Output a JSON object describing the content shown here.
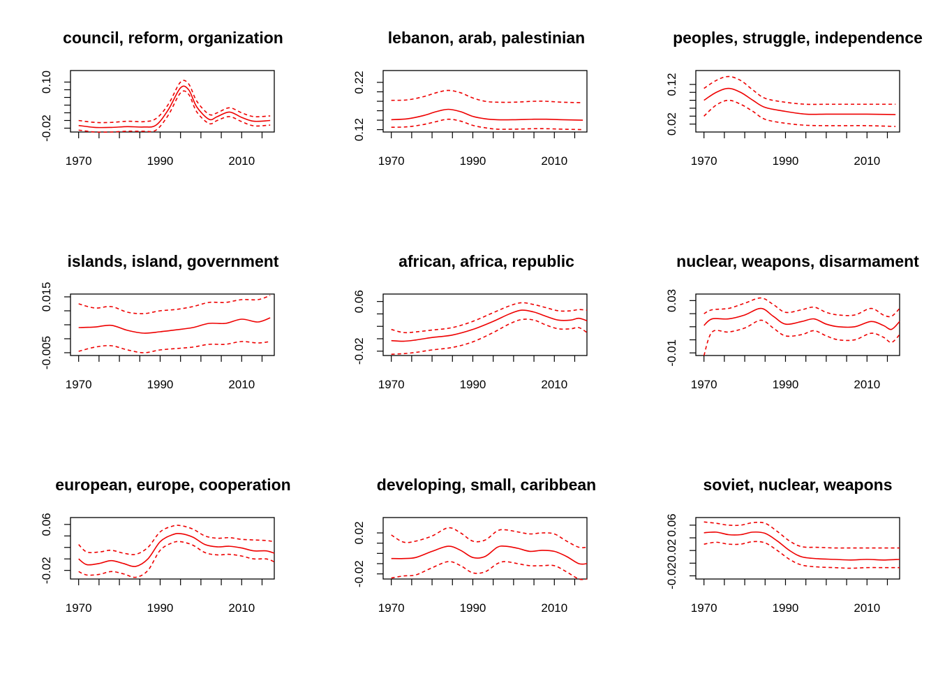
{
  "style": {
    "line_color": "#ee0000",
    "axis_color": "#000000"
  },
  "chart_data": [
    {
      "type": "line",
      "title": "council, reform, organization",
      "xlabel": "",
      "ylabel": "",
      "xlim": [
        1968,
        2018
      ],
      "ylim": [
        -0.03,
        0.13
      ],
      "xticks": [
        1970,
        1990,
        2010
      ],
      "xtick_labels": [
        "1970",
        "1990",
        "2010"
      ],
      "yticks": [
        -0.02,
        0.0,
        0.02,
        0.04,
        0.06,
        0.08,
        0.1
      ],
      "ytick_labels": [
        "-0.02",
        "0.10"
      ],
      "x": [
        1970,
        1974,
        1978,
        1982,
        1986,
        1989,
        1992,
        1995,
        1997,
        1999,
        2002,
        2004,
        2007,
        2010,
        2013,
        2017
      ],
      "series": [
        {
          "values": [
            -0.013,
            -0.018,
            -0.018,
            -0.016,
            -0.017,
            -0.012,
            0.028,
            0.085,
            0.08,
            0.035,
            0.003,
            0.01,
            0.022,
            0.008,
            -0.002,
            0.0
          ]
        },
        {
          "values": [
            0.0,
            -0.005,
            -0.005,
            -0.002,
            -0.003,
            0.005,
            0.042,
            0.1,
            0.095,
            0.05,
            0.016,
            0.02,
            0.033,
            0.02,
            0.01,
            0.012
          ]
        },
        {
          "values": [
            -0.025,
            -0.03,
            -0.03,
            -0.028,
            -0.028,
            -0.025,
            0.014,
            0.072,
            0.068,
            0.022,
            -0.008,
            0.0,
            0.01,
            -0.003,
            -0.014,
            -0.012
          ]
        }
      ]
    },
    {
      "type": "line",
      "title": "lebanon, arab, palestinian",
      "xlabel": "",
      "ylabel": "",
      "xlim": [
        1968,
        2018
      ],
      "ylim": [
        0.115,
        0.245
      ],
      "xticks": [
        1970,
        1990,
        2010
      ],
      "xtick_labels": [
        "1970",
        "1990",
        "2010"
      ],
      "yticks": [
        0.12,
        0.14,
        0.16,
        0.18,
        0.2,
        0.22
      ],
      "ytick_labels": [
        "0.12",
        "0.22"
      ],
      "x": [
        1970,
        1974,
        1978,
        1981,
        1984,
        1987,
        1990,
        1993,
        1996,
        2000,
        2005,
        2008,
        2012,
        2017
      ],
      "series": [
        {
          "values": [
            0.141,
            0.143,
            0.15,
            0.158,
            0.163,
            0.158,
            0.148,
            0.143,
            0.141,
            0.141,
            0.142,
            0.142,
            0.141,
            0.14
          ]
        },
        {
          "values": [
            0.182,
            0.183,
            0.19,
            0.198,
            0.203,
            0.198,
            0.187,
            0.18,
            0.178,
            0.178,
            0.18,
            0.18,
            0.178,
            0.177
          ]
        },
        {
          "values": [
            0.125,
            0.126,
            0.131,
            0.137,
            0.142,
            0.138,
            0.129,
            0.124,
            0.121,
            0.121,
            0.122,
            0.122,
            0.121,
            0.12
          ]
        }
      ]
    },
    {
      "type": "line",
      "title": "peoples, struggle, independence",
      "xlabel": "",
      "ylabel": "",
      "xlim": [
        1968,
        2018
      ],
      "ylim": [
        0.0,
        0.155
      ],
      "xticks": [
        1970,
        1990,
        2010
      ],
      "xtick_labels": [
        "1970",
        "1990",
        "2010"
      ],
      "yticks": [
        0.02,
        0.04,
        0.06,
        0.08,
        0.1,
        0.12
      ],
      "ytick_labels": [
        "0.02",
        "0.12"
      ],
      "x": [
        1970,
        1973,
        1976,
        1979,
        1982,
        1985,
        1990,
        1995,
        2000,
        2005,
        2010,
        2017
      ],
      "series": [
        {
          "values": [
            0.08,
            0.1,
            0.11,
            0.1,
            0.08,
            0.062,
            0.052,
            0.045,
            0.045,
            0.045,
            0.045,
            0.044
          ]
        },
        {
          "values": [
            0.11,
            0.13,
            0.14,
            0.13,
            0.106,
            0.085,
            0.075,
            0.07,
            0.07,
            0.07,
            0.07,
            0.07
          ]
        },
        {
          "values": [
            0.04,
            0.068,
            0.08,
            0.07,
            0.052,
            0.032,
            0.022,
            0.017,
            0.016,
            0.016,
            0.016,
            0.014
          ]
        }
      ]
    },
    {
      "type": "line",
      "title": "islands, island, government",
      "xlabel": "",
      "ylabel": "",
      "xlim": [
        1968,
        2018
      ],
      "ylim": [
        -0.006,
        0.016
      ],
      "xticks": [
        1970,
        1990,
        2010
      ],
      "xtick_labels": [
        "1970",
        "1990",
        "2010"
      ],
      "yticks": [
        -0.005,
        0.0,
        0.005,
        0.01,
        0.015
      ],
      "ytick_labels": [
        "-0.005",
        "0.015"
      ],
      "x": [
        1970,
        1974,
        1978,
        1982,
        1986,
        1990,
        1994,
        1998,
        2002,
        2006,
        2010,
        2014,
        2017
      ],
      "series": [
        {
          "values": [
            0.004,
            0.0042,
            0.0048,
            0.003,
            0.002,
            0.0025,
            0.0032,
            0.004,
            0.0055,
            0.0055,
            0.007,
            0.006,
            0.0075
          ]
        },
        {
          "values": [
            0.0125,
            0.011,
            0.0115,
            0.0095,
            0.009,
            0.01,
            0.0105,
            0.0115,
            0.013,
            0.013,
            0.014,
            0.014,
            0.0155
          ]
        },
        {
          "values": [
            -0.0045,
            -0.003,
            -0.0025,
            -0.004,
            -0.005,
            -0.004,
            -0.0035,
            -0.003,
            -0.002,
            -0.002,
            -0.001,
            -0.0015,
            -0.001
          ]
        }
      ]
    },
    {
      "type": "line",
      "title": "african, africa, republic",
      "xlabel": "",
      "ylabel": "",
      "xlim": [
        1968,
        2018
      ],
      "ylim": [
        -0.027,
        0.072
      ],
      "xticks": [
        1970,
        1990,
        2010
      ],
      "xtick_labels": [
        "1970",
        "1990",
        "2010"
      ],
      "yticks": [
        -0.02,
        0.0,
        0.02,
        0.04,
        0.06
      ],
      "ytick_labels": [
        "-0.02",
        "0.06"
      ],
      "x": [
        1970,
        1973,
        1976,
        1980,
        1985,
        1990,
        1995,
        1999,
        2002,
        2005,
        2008,
        2011,
        2014,
        2016,
        2018
      ],
      "series": [
        {
          "values": [
            -0.003,
            -0.004,
            -0.002,
            0.002,
            0.006,
            0.015,
            0.028,
            0.04,
            0.046,
            0.043,
            0.036,
            0.03,
            0.03,
            0.033,
            0.029
          ]
        },
        {
          "values": [
            0.015,
            0.01,
            0.011,
            0.014,
            0.018,
            0.028,
            0.042,
            0.053,
            0.058,
            0.055,
            0.05,
            0.045,
            0.045,
            0.047,
            0.046
          ]
        },
        {
          "values": [
            -0.025,
            -0.024,
            -0.022,
            -0.018,
            -0.014,
            -0.005,
            0.01,
            0.024,
            0.031,
            0.03,
            0.022,
            0.016,
            0.016,
            0.018,
            0.01
          ]
        }
      ]
    },
    {
      "type": "line",
      "title": "nuclear, weapons, disarmament",
      "xlabel": "",
      "ylabel": "",
      "xlim": [
        1968,
        2018
      ],
      "ylim": [
        -0.012,
        0.035
      ],
      "xticks": [
        1970,
        1990,
        2010
      ],
      "xtick_labels": [
        "1970",
        "1990",
        "2010"
      ],
      "yticks": [
        -0.01,
        0.0,
        0.01,
        0.02,
        0.03
      ],
      "ytick_labels": [
        "-0.01",
        "0.03"
      ],
      "x": [
        1970,
        1972,
        1976,
        1980,
        1984,
        1987,
        1990,
        1994,
        1997,
        2000,
        2003,
        2007,
        2011,
        2014,
        2016,
        2018
      ],
      "series": [
        {
          "values": [
            0.011,
            0.016,
            0.016,
            0.019,
            0.024,
            0.018,
            0.012,
            0.014,
            0.016,
            0.012,
            0.01,
            0.01,
            0.014,
            0.011,
            0.008,
            0.014
          ]
        },
        {
          "values": [
            0.02,
            0.023,
            0.024,
            0.028,
            0.032,
            0.027,
            0.021,
            0.023,
            0.025,
            0.021,
            0.019,
            0.019,
            0.024,
            0.019,
            0.018,
            0.024
          ]
        },
        {
          "values": [
            -0.012,
            0.006,
            0.006,
            0.009,
            0.015,
            0.009,
            0.003,
            0.004,
            0.007,
            0.003,
            0.0,
            0.0,
            0.005,
            0.002,
            -0.002,
            0.004
          ]
        }
      ]
    },
    {
      "type": "line",
      "title": "european, europe, cooperation",
      "xlabel": "",
      "ylabel": "",
      "xlim": [
        1968,
        2018
      ],
      "ylim": [
        -0.035,
        0.072
      ],
      "xticks": [
        1970,
        1990,
        2010
      ],
      "xtick_labels": [
        "1970",
        "1990",
        "2010"
      ],
      "yticks": [
        -0.02,
        0.0,
        0.02,
        0.04,
        0.06
      ],
      "ytick_labels": [
        "-0.02",
        "0.06"
      ],
      "x": [
        1970,
        1972,
        1975,
        1978,
        1981,
        1984,
        1987,
        1990,
        1993,
        1995,
        1998,
        2001,
        2004,
        2007,
        2010,
        2013,
        2016,
        2018
      ],
      "series": [
        {
          "values": [
            0.0,
            -0.01,
            -0.008,
            -0.003,
            -0.008,
            -0.013,
            0.0,
            0.03,
            0.042,
            0.044,
            0.038,
            0.025,
            0.021,
            0.022,
            0.019,
            0.014,
            0.014,
            0.01
          ]
        },
        {
          "values": [
            0.025,
            0.012,
            0.012,
            0.015,
            0.01,
            0.008,
            0.02,
            0.047,
            0.057,
            0.058,
            0.052,
            0.04,
            0.036,
            0.037,
            0.034,
            0.033,
            0.032,
            0.03
          ]
        },
        {
          "values": [
            -0.022,
            -0.028,
            -0.027,
            -0.022,
            -0.026,
            -0.032,
            -0.02,
            0.015,
            0.028,
            0.03,
            0.024,
            0.011,
            0.007,
            0.008,
            0.005,
            0.0,
            0.0,
            -0.005
          ]
        }
      ]
    },
    {
      "type": "line",
      "title": "developing, small, caribbean",
      "xlabel": "",
      "ylabel": "",
      "xlim": [
        1968,
        2018
      ],
      "ylim": [
        -0.025,
        0.035
      ],
      "xticks": [
        1970,
        1990,
        2010
      ],
      "xtick_labels": [
        "1970",
        "1990",
        "2010"
      ],
      "yticks": [
        -0.02,
        -0.01,
        0.0,
        0.01,
        0.02
      ],
      "ytick_labels": [
        "-0.02",
        "0.02"
      ],
      "x": [
        1970,
        1973,
        1976,
        1980,
        1984,
        1987,
        1990,
        1993,
        1996,
        1998,
        2001,
        2004,
        2007,
        2010,
        2013,
        2016,
        2018
      ],
      "series": [
        {
          "values": [
            -0.005,
            -0.005,
            -0.004,
            0.002,
            0.007,
            0.003,
            -0.004,
            -0.003,
            0.006,
            0.007,
            0.005,
            0.002,
            0.003,
            0.002,
            -0.003,
            -0.01,
            -0.01
          ]
        },
        {
          "values": [
            0.018,
            0.011,
            0.012,
            0.017,
            0.025,
            0.02,
            0.012,
            0.013,
            0.022,
            0.023,
            0.021,
            0.019,
            0.02,
            0.019,
            0.012,
            0.006,
            0.006
          ]
        },
        {
          "values": [
            -0.024,
            -0.022,
            -0.021,
            -0.014,
            -0.008,
            -0.012,
            -0.019,
            -0.018,
            -0.01,
            -0.008,
            -0.01,
            -0.012,
            -0.012,
            -0.012,
            -0.018,
            -0.025,
            -0.025
          ]
        }
      ]
    },
    {
      "type": "line",
      "title": "soviet, nuclear, weapons",
      "xlabel": "",
      "ylabel": "",
      "xlim": [
        1968,
        2018
      ],
      "ylim": [
        -0.025,
        0.072
      ],
      "xticks": [
        1970,
        1990,
        2010
      ],
      "xtick_labels": [
        "1970",
        "1990",
        "2010"
      ],
      "yticks": [
        -0.02,
        0.0,
        0.02,
        0.04,
        0.06
      ],
      "ytick_labels": [
        "-0.02",
        "0.02",
        "0.06"
      ],
      "x": [
        1970,
        1973,
        1976,
        1979,
        1982,
        1985,
        1988,
        1991,
        1994,
        1998,
        2002,
        2006,
        2010,
        2014,
        2018
      ],
      "series": [
        {
          "values": [
            0.048,
            0.049,
            0.045,
            0.045,
            0.049,
            0.047,
            0.035,
            0.02,
            0.01,
            0.007,
            0.006,
            0.005,
            0.006,
            0.005,
            0.006
          ]
        },
        {
          "values": [
            0.065,
            0.063,
            0.06,
            0.06,
            0.064,
            0.063,
            0.05,
            0.035,
            0.026,
            0.025,
            0.024,
            0.024,
            0.024,
            0.024,
            0.024
          ]
        },
        {
          "values": [
            0.03,
            0.033,
            0.03,
            0.03,
            0.034,
            0.032,
            0.02,
            0.006,
            -0.003,
            -0.006,
            -0.007,
            -0.008,
            -0.007,
            -0.007,
            -0.007
          ]
        }
      ]
    }
  ]
}
